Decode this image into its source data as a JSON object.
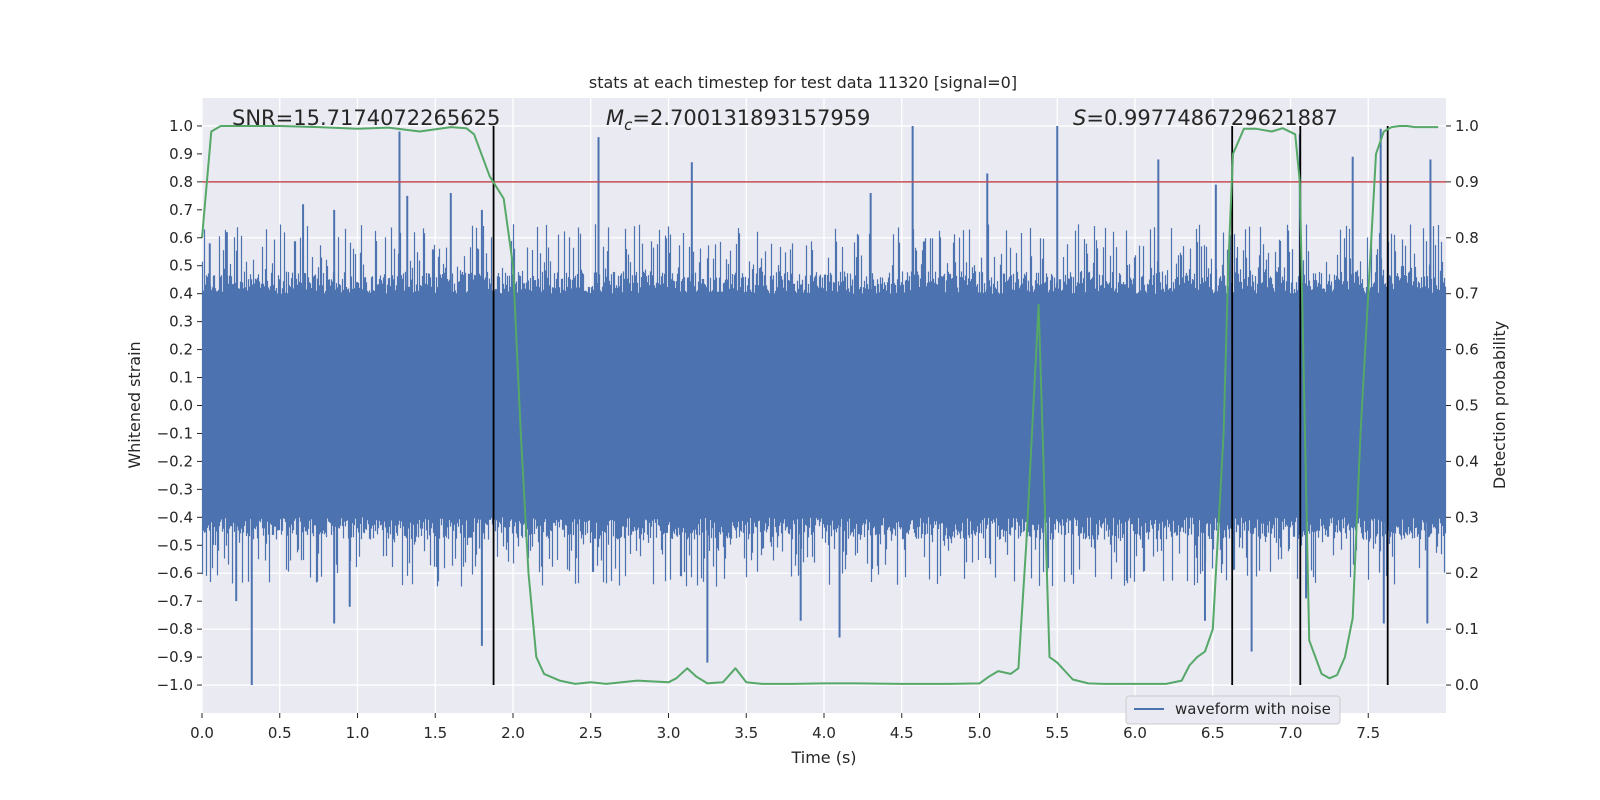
{
  "chart_data": {
    "type": "line",
    "title": "stats at each timestep for test data 11320 [signal=0]",
    "xlabel": "Time (s)",
    "ylabel": "Whitened strain",
    "ylabel_right": "Detection probability",
    "xlim": [
      0.0,
      8.0
    ],
    "ylim": [
      -1.1,
      1.1
    ],
    "ylim_right": [
      -0.05,
      1.05
    ],
    "x_ticks": [
      0.0,
      0.5,
      1.0,
      1.5,
      2.0,
      2.5,
      3.0,
      3.5,
      4.0,
      4.5,
      5.0,
      5.5,
      6.0,
      6.5,
      7.0,
      7.5
    ],
    "x_tick_labels": [
      "0.0",
      "0.5",
      "1.0",
      "1.5",
      "2.0",
      "2.5",
      "3.0",
      "3.5",
      "4.0",
      "4.5",
      "5.0",
      "5.5",
      "6.0",
      "6.5",
      "7.0",
      "7.5"
    ],
    "y_ticks": [
      -1.0,
      -0.9,
      -0.8,
      -0.7,
      -0.6,
      -0.5,
      -0.4,
      -0.3,
      -0.2,
      -0.1,
      0.0,
      0.1,
      0.2,
      0.3,
      0.4,
      0.5,
      0.6,
      0.7,
      0.8,
      0.9,
      1.0
    ],
    "y_tick_labels": [
      "−1.0",
      "−0.9",
      "−0.8",
      "−0.7",
      "−0.6",
      "−0.5",
      "−0.4",
      "−0.3",
      "−0.2",
      "−0.1",
      "0.0",
      "0.1",
      "0.2",
      "0.3",
      "0.4",
      "0.5",
      "0.6",
      "0.7",
      "0.8",
      "0.9",
      "1.0"
    ],
    "y2_ticks": [
      0.0,
      0.1,
      0.2,
      0.3,
      0.4,
      0.5,
      0.6,
      0.7,
      0.8,
      0.9,
      1.0
    ],
    "y2_tick_labels": [
      "0.0",
      "0.1",
      "0.2",
      "0.3",
      "0.4",
      "0.5",
      "0.6",
      "0.7",
      "0.8",
      "0.9",
      "1.0"
    ],
    "annotations": {
      "snr": "SNR=15.7174072265625",
      "mc_symbol": "M",
      "mc_subscript": "c",
      "mc_value": "=2.700131893157959",
      "s_symbol": "S",
      "s_value": "=0.9977486729621887"
    },
    "legend": {
      "label": "waveform with noise",
      "placement": "lower-right"
    },
    "threshold": {
      "value": 0.9,
      "axis": "right",
      "color": "#c44e52"
    },
    "vertical_markers": [
      1.875,
      6.625,
      7.063,
      7.625
    ],
    "waveform": {
      "name": "waveform with noise",
      "color": "#4c72b0",
      "sample_rate_hz": 2048,
      "duration_s": 8.0,
      "noise_core_amplitude": 0.4,
      "spikes": [
        {
          "t": 0.05,
          "v": 0.58
        },
        {
          "t": 0.16,
          "v": 0.62
        },
        {
          "t": 0.32,
          "v": -1.0
        },
        {
          "t": 0.22,
          "v": -0.7
        },
        {
          "t": 0.65,
          "v": 0.72
        },
        {
          "t": 0.85,
          "v": 0.7
        },
        {
          "t": 0.85,
          "v": -0.78
        },
        {
          "t": 0.95,
          "v": -0.72
        },
        {
          "t": 1.27,
          "v": 0.98
        },
        {
          "t": 1.32,
          "v": 0.75
        },
        {
          "t": 1.6,
          "v": 0.76
        },
        {
          "t": 1.8,
          "v": 0.7
        },
        {
          "t": 1.8,
          "v": -0.86
        },
        {
          "t": 2.55,
          "v": 0.96
        },
        {
          "t": 3.15,
          "v": 0.87
        },
        {
          "t": 3.25,
          "v": -0.92
        },
        {
          "t": 3.85,
          "v": -0.77
        },
        {
          "t": 4.1,
          "v": -0.83
        },
        {
          "t": 4.57,
          "v": 1.0
        },
        {
          "t": 4.3,
          "v": 0.76
        },
        {
          "t": 5.5,
          "v": 1.0
        },
        {
          "t": 5.05,
          "v": 0.83
        },
        {
          "t": 6.15,
          "v": 0.88
        },
        {
          "t": 6.45,
          "v": -0.77
        },
        {
          "t": 6.52,
          "v": 0.79
        },
        {
          "t": 6.75,
          "v": -0.88
        },
        {
          "t": 7.06,
          "v": 0.97
        },
        {
          "t": 7.1,
          "v": -0.69
        },
        {
          "t": 7.4,
          "v": 0.89
        },
        {
          "t": 7.58,
          "v": 0.99
        },
        {
          "t": 7.6,
          "v": -0.78
        },
        {
          "t": 7.9,
          "v": 0.88
        },
        {
          "t": 7.88,
          "v": -0.78
        }
      ]
    },
    "detection_probability": {
      "color": "#55a868",
      "t": [
        0.0,
        0.06,
        0.12,
        0.25,
        0.5,
        0.75,
        1.0,
        1.2,
        1.4,
        1.6,
        1.7,
        1.75,
        1.85,
        1.94,
        2.0,
        2.05,
        2.1,
        2.15,
        2.2,
        2.3,
        2.4,
        2.5,
        2.6,
        2.8,
        3.0,
        3.05,
        3.12,
        3.18,
        3.25,
        3.3,
        3.35,
        3.43,
        3.5,
        3.6,
        3.8,
        4.0,
        4.2,
        4.5,
        4.8,
        5.0,
        5.06,
        5.12,
        5.2,
        5.25,
        5.3,
        5.38,
        5.45,
        5.5,
        5.6,
        5.7,
        5.8,
        6.0,
        6.2,
        6.3,
        6.35,
        6.4,
        6.45,
        6.5,
        6.57,
        6.6,
        6.63,
        6.7,
        6.78,
        6.88,
        6.95,
        7.03,
        7.06,
        7.12,
        7.2,
        7.25,
        7.3,
        7.35,
        7.4,
        7.45,
        7.5,
        7.55,
        7.6,
        7.65,
        7.7,
        7.75,
        7.8,
        7.95
      ],
      "p": [
        0.8,
        0.99,
        1.0,
        1.0,
        1.0,
        0.998,
        0.995,
        0.997,
        0.99,
        0.998,
        0.996,
        0.985,
        0.91,
        0.87,
        0.75,
        0.45,
        0.2,
        0.05,
        0.02,
        0.008,
        0.002,
        0.005,
        0.002,
        0.008,
        0.005,
        0.012,
        0.03,
        0.015,
        0.003,
        0.004,
        0.005,
        0.03,
        0.005,
        0.002,
        0.002,
        0.003,
        0.003,
        0.002,
        0.002,
        0.003,
        0.015,
        0.025,
        0.02,
        0.03,
        0.25,
        0.68,
        0.05,
        0.04,
        0.01,
        0.003,
        0.002,
        0.002,
        0.002,
        0.008,
        0.035,
        0.05,
        0.06,
        0.1,
        0.45,
        0.75,
        0.95,
        0.995,
        0.995,
        0.99,
        0.996,
        0.985,
        0.9,
        0.08,
        0.02,
        0.012,
        0.018,
        0.05,
        0.12,
        0.45,
        0.7,
        0.95,
        0.99,
        0.998,
        1.0,
        1.0,
        0.998,
        0.998
      ]
    }
  }
}
